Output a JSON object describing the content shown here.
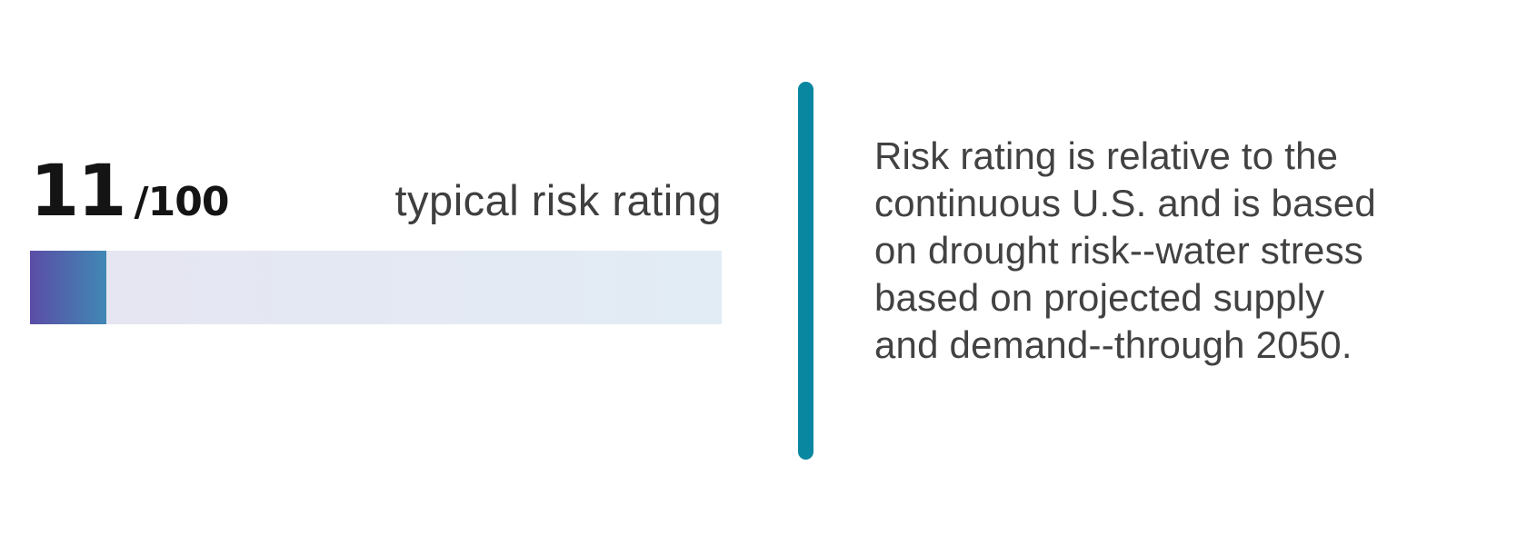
{
  "score": {
    "value": "11",
    "denominator": "/100",
    "label": "typical risk rating",
    "progress_percent": 11
  },
  "colors": {
    "fill_gradient_start": "#5b4da6",
    "fill_gradient_end": "#4088b4",
    "track_gradient_start": "#e6e5f2",
    "track_gradient_end": "#e2ecf4",
    "divider": "#0a87a0",
    "score_text": "#141414",
    "label_text": "#3f3f3f",
    "description_text": "#424242"
  },
  "description": {
    "lines": [
      "Risk rating is relative to the",
      "continuous U.S. and is based",
      "on drought risk--water stress",
      "based on projected supply",
      "and demand--through 2050."
    ]
  },
  "chart_data": {
    "type": "bar",
    "title": "typical risk rating",
    "categories": [
      "typical risk rating"
    ],
    "values": [
      11
    ],
    "value_label": "11/100",
    "xlabel": "",
    "ylabel": "risk rating",
    "xlim": [
      0,
      100
    ],
    "grid": false,
    "legend_position": "none",
    "annotation": "Risk rating is relative to the continuous U.S. and is based on drought risk--water stress based on projected supply and demand--through 2050."
  }
}
